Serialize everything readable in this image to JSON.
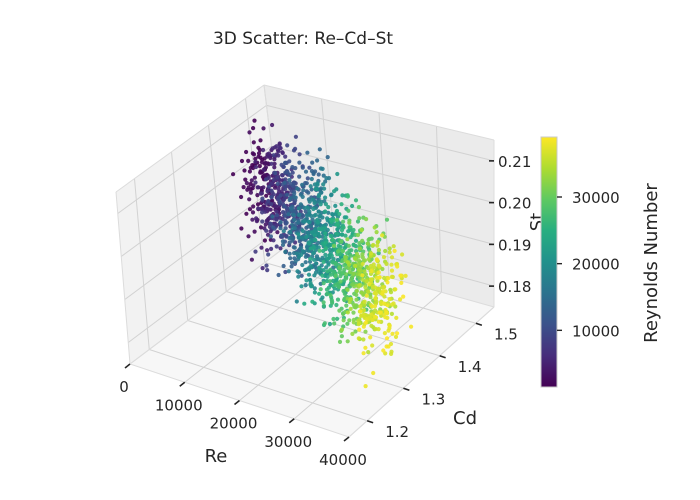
{
  "chart_data": {
    "type": "scatter",
    "title": "3D Scatter: Re–Cd–St",
    "xlabel": "Re",
    "ylabel": "Cd",
    "zlabel": "St",
    "x_ticks": [
      0,
      10000,
      20000,
      30000,
      40000
    ],
    "y_ticks": [
      1.2,
      1.3,
      1.4,
      1.5
    ],
    "z_ticks": [
      0.18,
      0.19,
      0.2,
      0.21
    ],
    "x_tick_labels": [
      "0",
      "10000",
      "20000",
      "30000",
      "40000"
    ],
    "y_tick_labels": [
      "1.2",
      "1.3",
      "1.4",
      "1.5"
    ],
    "z_tick_labels": [
      "0.18",
      "0.19",
      "0.20",
      "0.21"
    ],
    "xlim": [
      0,
      40000
    ],
    "ylim": [
      1.15,
      1.55
    ],
    "zlim": [
      0.175,
      0.215
    ],
    "colorbar": {
      "label": "Reynolds Number",
      "colormap": "viridis",
      "range": [
        1500,
        39000
      ],
      "ticks": [
        10000,
        20000,
        30000
      ],
      "tick_labels": [
        "10000",
        "20000",
        "30000"
      ]
    },
    "series": [
      {
        "point_count": 1500,
        "re_range": [
          1000,
          39000
        ],
        "cd_range": [
          1.2,
          1.5
        ],
        "st_range": [
          0.18,
          0.21
        ],
        "trend": "Cd decreases slightly as Re increases; St roughly constant",
        "sample_points": [
          {
            "re": 2000,
            "cd": 1.48,
            "st": 0.193
          },
          {
            "re": 5000,
            "cd": 1.45,
            "st": 0.2
          },
          {
            "re": 10000,
            "cd": 1.42,
            "st": 0.195
          },
          {
            "re": 15000,
            "cd": 1.4,
            "st": 0.19
          },
          {
            "re": 20000,
            "cd": 1.36,
            "st": 0.196
          },
          {
            "re": 25000,
            "cd": 1.33,
            "st": 0.2
          },
          {
            "re": 30000,
            "cd": 1.3,
            "st": 0.19
          },
          {
            "re": 35000,
            "cd": 1.27,
            "st": 0.193
          },
          {
            "re": 38000,
            "cd": 1.25,
            "st": 0.197
          }
        ]
      }
    ],
    "grid": true
  }
}
